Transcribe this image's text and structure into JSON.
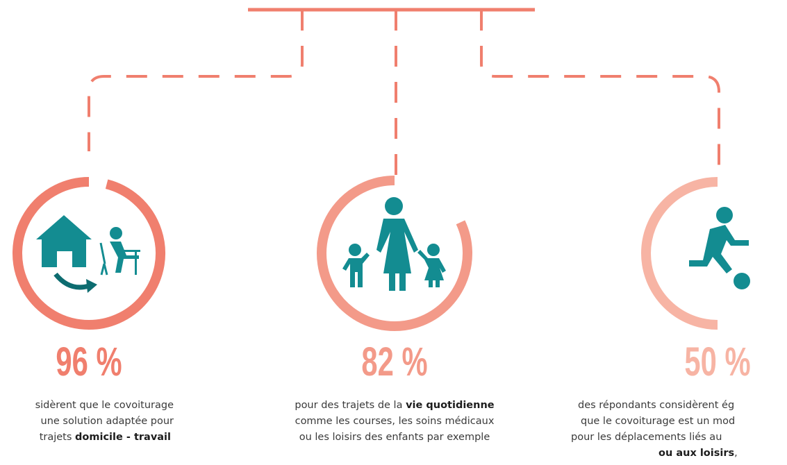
{
  "items": [
    {
      "value": 96,
      "value_label": "96 %",
      "lines": [
        {
          "before": "sidèrent que le covoiturage"
        },
        {
          "before": "une solution adaptée pour"
        },
        {
          "before": "trajets ",
          "strong": "domicile - travail"
        }
      ]
    },
    {
      "value": 82,
      "value_label": "82 %",
      "lines": [
        {
          "before": "pour des trajets de la ",
          "strong": "vie quotidienne"
        },
        {
          "before": "comme les courses, les soins médicaux"
        },
        {
          "before": "ou les loisirs des enfants par exemple"
        }
      ]
    },
    {
      "value": 50,
      "value_label": "50 %",
      "lines": [
        {
          "before": "des répondants considèrent ég"
        },
        {
          "before": "que le covoiturage est un mod"
        },
        {
          "before": "pour les déplacements liés au"
        },
        {
          "strong": "ou aux loisirs",
          "after": ","
        }
      ]
    }
  ]
}
